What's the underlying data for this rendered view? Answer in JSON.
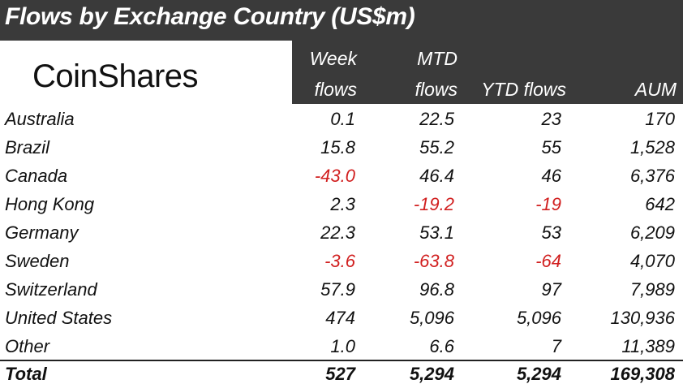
{
  "title": "Flows by Exchange Country (US$m)",
  "logo": "CoinShares",
  "headers": {
    "week_line1": "Week",
    "week_line2": "flows",
    "mtd_line1": "MTD",
    "mtd_line2": "flows",
    "ytd": "YTD flows",
    "aum": "AUM"
  },
  "rows": [
    {
      "country": "Australia",
      "week": "0.1",
      "mtd": "22.5",
      "ytd": "23",
      "aum": "170"
    },
    {
      "country": "Brazil",
      "week": "15.8",
      "mtd": "55.2",
      "ytd": "55",
      "aum": "1,528"
    },
    {
      "country": "Canada",
      "week": "-43.0",
      "mtd": "46.4",
      "ytd": "46",
      "aum": "6,376"
    },
    {
      "country": "Hong Kong",
      "week": "2.3",
      "mtd": "-19.2",
      "ytd": "-19",
      "aum": "642"
    },
    {
      "country": "Germany",
      "week": "22.3",
      "mtd": "53.1",
      "ytd": "53",
      "aum": "6,209"
    },
    {
      "country": "Sweden",
      "week": "-3.6",
      "mtd": "-63.8",
      "ytd": "-64",
      "aum": "4,070"
    },
    {
      "country": "Switzerland",
      "week": "57.9",
      "mtd": "96.8",
      "ytd": "97",
      "aum": "7,989"
    },
    {
      "country": "United States",
      "week": "474",
      "mtd": "5,096",
      "ytd": "5,096",
      "aum": "130,936"
    },
    {
      "country": "Other",
      "week": "1.0",
      "mtd": "6.6",
      "ytd": "7",
      "aum": "11,389"
    }
  ],
  "total": {
    "country": "Total",
    "week": "527",
    "mtd": "5,294",
    "ytd": "5,294",
    "aum": "169,308"
  },
  "colors": {
    "header_bg": "#3a3a3a",
    "negative": "#d11f1f",
    "text": "#111111"
  }
}
